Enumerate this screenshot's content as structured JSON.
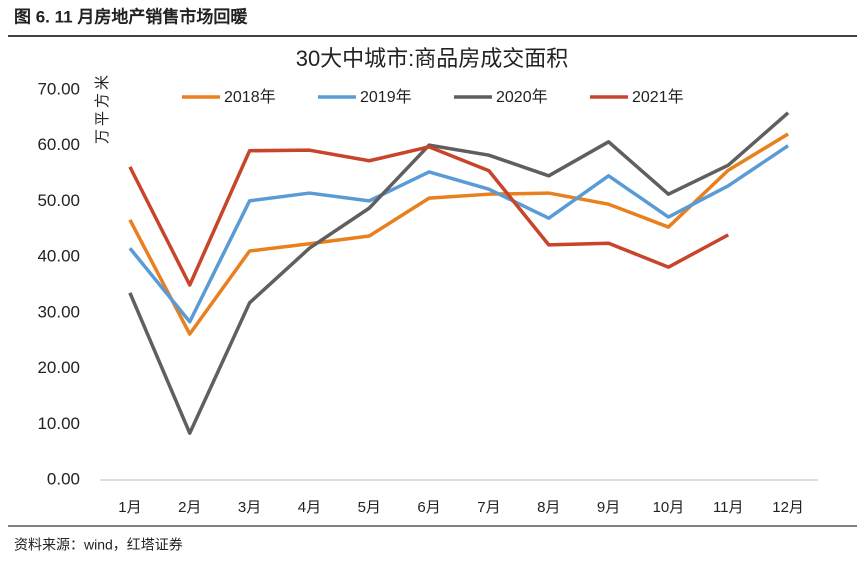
{
  "caption": "图 6. 11 月房地产销售市场回暖",
  "source": "资料来源：wind，红塔证券",
  "chart_data": {
    "type": "line",
    "title": "30大中城市:商品房成交面积",
    "y_label": "万平方米",
    "categories": [
      "1月",
      "2月",
      "3月",
      "4月",
      "5月",
      "6月",
      "7月",
      "8月",
      "9月",
      "10月",
      "11月",
      "12月"
    ],
    "series": [
      {
        "name": "2018年",
        "color": "#e8801e",
        "values": [
          46.7,
          26.2,
          41.1,
          42.4,
          43.8,
          50.6,
          51.3,
          51.5,
          49.5,
          45.4,
          55.6,
          62.1
        ]
      },
      {
        "name": "2019年",
        "color": "#5b9bd5",
        "values": [
          41.6,
          28.4,
          50.1,
          51.5,
          50.1,
          55.3,
          52.2,
          47.0,
          54.6,
          47.2,
          52.8,
          60.0
        ]
      },
      {
        "name": "2020年",
        "color": "#5f5f5f",
        "values": [
          33.6,
          8.4,
          31.8,
          41.6,
          48.8,
          60.1,
          58.3,
          54.6,
          60.7,
          51.3,
          56.5,
          65.9
        ]
      },
      {
        "name": "2021年",
        "color": "#c8442a",
        "values": [
          56.2,
          35.0,
          59.1,
          59.2,
          57.3,
          59.8,
          55.5,
          42.2,
          42.5,
          38.2,
          44.0,
          null
        ]
      }
    ],
    "ylim": [
      0,
      70
    ],
    "yticks": [
      {
        "value": 0,
        "label": "0.00"
      },
      {
        "value": 10,
        "label": "10.00"
      },
      {
        "value": 20,
        "label": "20.00"
      },
      {
        "value": 30,
        "label": "30.00"
      },
      {
        "value": 40,
        "label": "40.00"
      },
      {
        "value": 50,
        "label": "50.00"
      },
      {
        "value": 60,
        "label": "60.00"
      },
      {
        "value": 70,
        "label": "70.00"
      }
    ],
    "grid": false,
    "legend": "top"
  }
}
